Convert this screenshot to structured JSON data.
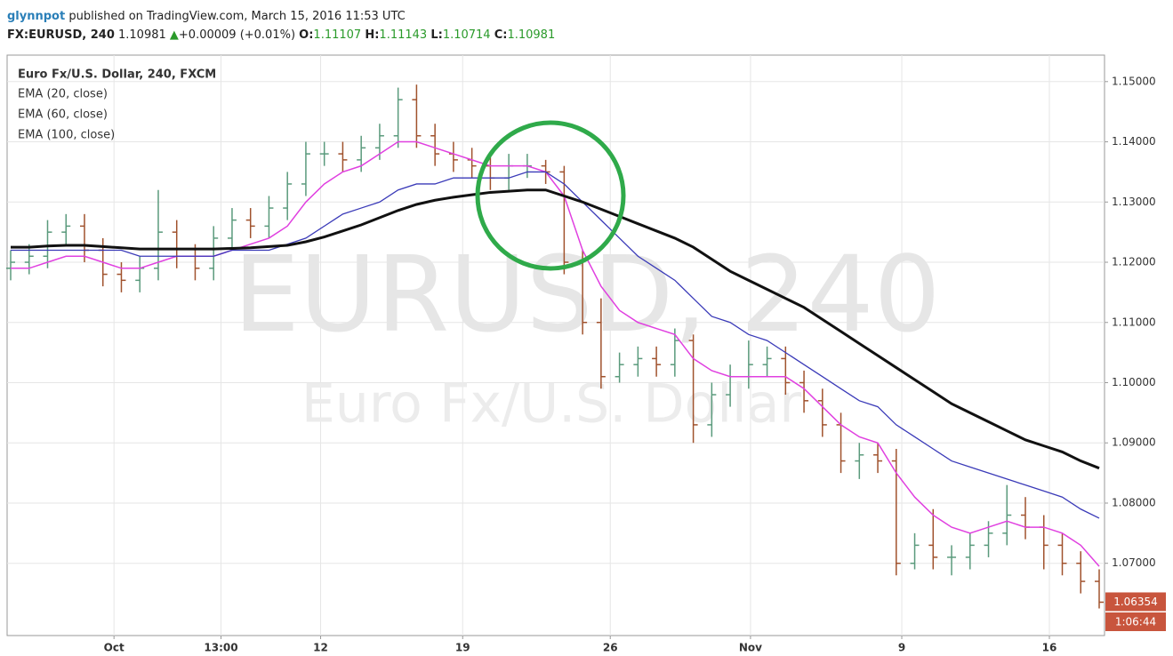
{
  "header": {
    "author": "glynnpot",
    "published": "published on TradingView.com, March 15, 2016 11:53 UTC",
    "symbol": "FX:EURUSD, 240",
    "price": 1.10981,
    "change": "+0.00009 (+0.01%)",
    "ohlc": [
      {
        "label": "O:",
        "value": 1.11107
      },
      {
        "label": "H:",
        "value": 1.11143
      },
      {
        "label": "L:",
        "value": 1.10714
      },
      {
        "label": "C:",
        "value": 1.10981
      }
    ]
  },
  "chart_data": {
    "type": "ohlc",
    "title": "Euro Fx/U.S. Dollar, 240, FXCM",
    "watermark": "EURUSD, 240",
    "watermark_subtitle": "Euro Fx/U.S. Dollar",
    "x": [
      0,
      1,
      2,
      3,
      4,
      5,
      6,
      7,
      8,
      9,
      10,
      11,
      12,
      13,
      14,
      15,
      16,
      17,
      18,
      19,
      20,
      21,
      22,
      23,
      24,
      25,
      26,
      27,
      28,
      29,
      30,
      31,
      32,
      33,
      34,
      35,
      36,
      37,
      38,
      39,
      40,
      41,
      42,
      43,
      44,
      45,
      46,
      47,
      48,
      49,
      50,
      51,
      52,
      53,
      54,
      55,
      56,
      57,
      58,
      59
    ],
    "open": [
      1.119,
      1.12,
      1.121,
      1.125,
      1.126,
      1.122,
      1.118,
      1.117,
      1.119,
      1.125,
      1.121,
      1.119,
      1.124,
      1.127,
      1.126,
      1.129,
      1.133,
      1.138,
      1.138,
      1.137,
      1.139,
      1.141,
      1.147,
      1.141,
      1.138,
      1.137,
      1.136,
      1.134,
      1.136,
      1.136,
      1.135,
      1.12,
      1.11,
      1.101,
      1.103,
      1.104,
      1.103,
      1.107,
      1.093,
      1.098,
      1.101,
      1.103,
      1.104,
      1.1,
      1.097,
      1.093,
      1.087,
      1.088,
      1.087,
      1.07,
      1.073,
      1.071,
      1.071,
      1.073,
      1.075,
      1.078,
      1.076,
      1.073,
      1.07,
      1.067
    ],
    "high": [
      1.122,
      1.123,
      1.127,
      1.128,
      1.128,
      1.124,
      1.12,
      1.121,
      1.132,
      1.127,
      1.123,
      1.126,
      1.129,
      1.129,
      1.131,
      1.135,
      1.14,
      1.14,
      1.14,
      1.141,
      1.143,
      1.149,
      1.1495,
      1.143,
      1.14,
      1.139,
      1.138,
      1.138,
      1.138,
      1.137,
      1.136,
      1.122,
      1.114,
      1.105,
      1.106,
      1.106,
      1.109,
      1.108,
      1.1,
      1.103,
      1.107,
      1.106,
      1.106,
      1.102,
      1.099,
      1.095,
      1.09,
      1.09,
      1.089,
      1.075,
      1.079,
      1.073,
      1.075,
      1.077,
      1.083,
      1.081,
      1.078,
      1.075,
      1.072,
      1.069
    ],
    "low": [
      1.117,
      1.118,
      1.119,
      1.123,
      1.12,
      1.116,
      1.115,
      1.115,
      1.117,
      1.119,
      1.117,
      1.117,
      1.122,
      1.124,
      1.124,
      1.127,
      1.131,
      1.136,
      1.135,
      1.135,
      1.137,
      1.139,
      1.139,
      1.136,
      1.135,
      1.134,
      1.132,
      1.132,
      1.134,
      1.133,
      1.118,
      1.108,
      1.099,
      1.1,
      1.101,
      1.101,
      1.101,
      1.09,
      1.091,
      1.096,
      1.099,
      1.101,
      1.098,
      1.095,
      1.091,
      1.085,
      1.084,
      1.085,
      1.068,
      1.069,
      1.069,
      1.068,
      1.069,
      1.071,
      1.073,
      1.074,
      1.069,
      1.068,
      1.065,
      1.0625
    ],
    "close": [
      1.12,
      1.121,
      1.125,
      1.126,
      1.122,
      1.118,
      1.117,
      1.119,
      1.125,
      1.121,
      1.119,
      1.124,
      1.127,
      1.126,
      1.129,
      1.133,
      1.138,
      1.138,
      1.137,
      1.139,
      1.141,
      1.147,
      1.141,
      1.138,
      1.137,
      1.136,
      1.134,
      1.136,
      1.136,
      1.135,
      1.12,
      1.11,
      1.101,
      1.103,
      1.104,
      1.103,
      1.107,
      1.093,
      1.098,
      1.101,
      1.103,
      1.104,
      1.1,
      1.097,
      1.093,
      1.087,
      1.088,
      1.087,
      1.07,
      1.073,
      1.071,
      1.071,
      1.073,
      1.075,
      1.078,
      1.076,
      1.073,
      1.07,
      1.067,
      1.06354
    ],
    "up_color": "#5a9a7c",
    "down_color": "#a0522d",
    "series": [
      {
        "name": "EMA (20, close)",
        "color": "#e040e0",
        "width": 1.5,
        "values": [
          1.119,
          1.119,
          1.12,
          1.121,
          1.121,
          1.12,
          1.119,
          1.119,
          1.12,
          1.121,
          1.121,
          1.121,
          1.122,
          1.123,
          1.124,
          1.126,
          1.13,
          1.133,
          1.135,
          1.136,
          1.138,
          1.14,
          1.14,
          1.139,
          1.138,
          1.137,
          1.136,
          1.136,
          1.136,
          1.135,
          1.131,
          1.122,
          1.116,
          1.112,
          1.11,
          1.109,
          1.108,
          1.104,
          1.102,
          1.101,
          1.101,
          1.101,
          1.101,
          1.099,
          1.096,
          1.093,
          1.091,
          1.09,
          1.085,
          1.081,
          1.078,
          1.076,
          1.075,
          1.076,
          1.077,
          1.076,
          1.076,
          1.075,
          1.073,
          1.0695
        ]
      },
      {
        "name": "EMA (60, close)",
        "color": "#3a3ab8",
        "width": 1.3,
        "values": [
          1.122,
          1.122,
          1.122,
          1.122,
          1.122,
          1.122,
          1.122,
          1.121,
          1.121,
          1.121,
          1.121,
          1.121,
          1.122,
          1.122,
          1.122,
          1.123,
          1.124,
          1.126,
          1.128,
          1.129,
          1.13,
          1.132,
          1.133,
          1.133,
          1.134,
          1.134,
          1.134,
          1.134,
          1.135,
          1.135,
          1.133,
          1.13,
          1.127,
          1.124,
          1.121,
          1.119,
          1.117,
          1.114,
          1.111,
          1.11,
          1.108,
          1.107,
          1.105,
          1.103,
          1.101,
          1.099,
          1.097,
          1.096,
          1.093,
          1.091,
          1.089,
          1.087,
          1.086,
          1.085,
          1.084,
          1.083,
          1.082,
          1.081,
          1.079,
          1.0775
        ]
      },
      {
        "name": "EMA (100, close)",
        "color": "#111111",
        "width": 3,
        "values": [
          1.1225,
          1.1225,
          1.1227,
          1.1228,
          1.1228,
          1.1226,
          1.1224,
          1.1222,
          1.1222,
          1.1222,
          1.1222,
          1.1222,
          1.1223,
          1.1224,
          1.1226,
          1.1228,
          1.1234,
          1.1242,
          1.1252,
          1.1262,
          1.1274,
          1.1286,
          1.1296,
          1.1303,
          1.1308,
          1.1312,
          1.1316,
          1.1318,
          1.132,
          1.132,
          1.131,
          1.13,
          1.1288,
          1.1276,
          1.1264,
          1.1252,
          1.124,
          1.1225,
          1.1205,
          1.1185,
          1.117,
          1.1155,
          1.114,
          1.1125,
          1.1105,
          1.1085,
          1.1065,
          1.1045,
          1.1025,
          1.1005,
          1.0985,
          1.0965,
          1.095,
          1.0935,
          1.092,
          1.0905,
          1.0895,
          1.0885,
          1.087,
          1.0858
        ]
      }
    ],
    "xlim": [
      0,
      59
    ],
    "xticks": [
      {
        "value": 5.6,
        "label": "Oct"
      },
      {
        "value": 11.4,
        "label": "13:00"
      },
      {
        "value": 16.8,
        "label": "12"
      },
      {
        "value": 24.5,
        "label": "19"
      },
      {
        "value": 32.5,
        "label": "26"
      },
      {
        "value": 40.1,
        "label": "Nov"
      },
      {
        "value": 48.3,
        "label": "9"
      },
      {
        "value": 56.3,
        "label": "16"
      }
    ],
    "ylim": [
      1.058,
      1.1544
    ],
    "yticks": [
      {
        "value": 1.07,
        "label": "1.07000"
      },
      {
        "value": 1.08,
        "label": "1.08000"
      },
      {
        "value": 1.09,
        "label": "1.09000"
      },
      {
        "value": 1.1,
        "label": "1.10000"
      },
      {
        "value": 1.11,
        "label": "1.11000"
      },
      {
        "value": 1.12,
        "label": "1.12000"
      },
      {
        "value": 1.13,
        "label": "1.13000"
      },
      {
        "value": 1.14,
        "label": "1.14000"
      },
      {
        "value": 1.15,
        "label": "1.15000"
      }
    ],
    "grid": true,
    "last_price": 1.06354,
    "countdown": "1:06:44"
  }
}
